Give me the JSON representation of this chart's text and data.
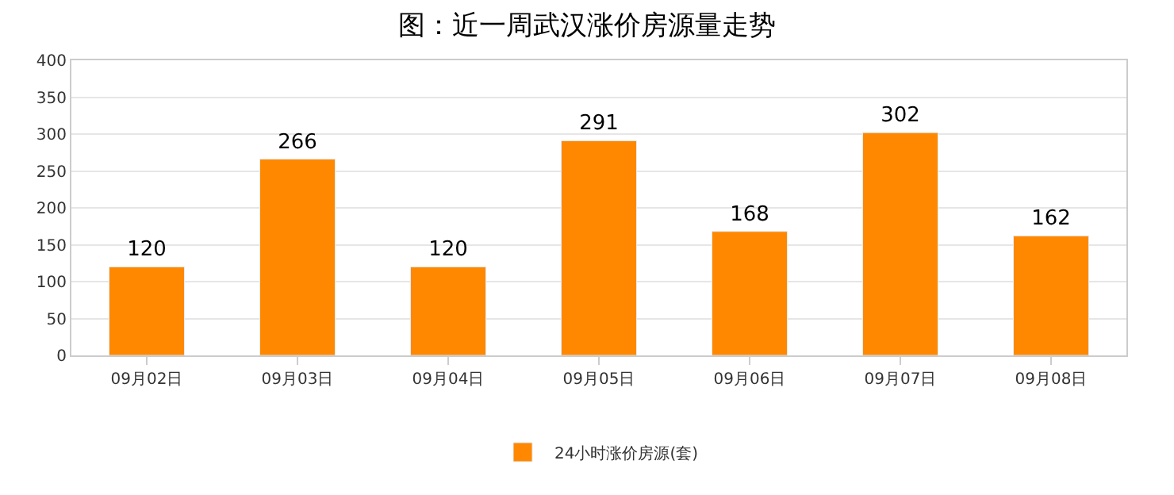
{
  "chart_data": {
    "type": "bar",
    "title": "图：近一周武汉涨价房源量走势",
    "categories": [
      "09月02日",
      "09月03日",
      "09月04日",
      "09月05日",
      "09月06日",
      "09月07日",
      "09月08日"
    ],
    "series": [
      {
        "name": "24小时涨价房源(套)",
        "color": "#ff8800",
        "values": [
          120,
          266,
          120,
          291,
          168,
          302,
          162
        ]
      }
    ],
    "ylim": [
      0,
      400
    ],
    "yticks": [
      0,
      50,
      100,
      150,
      200,
      250,
      300,
      350,
      400
    ],
    "grid": "y",
    "legend": "bottom",
    "data_labels": true
  }
}
